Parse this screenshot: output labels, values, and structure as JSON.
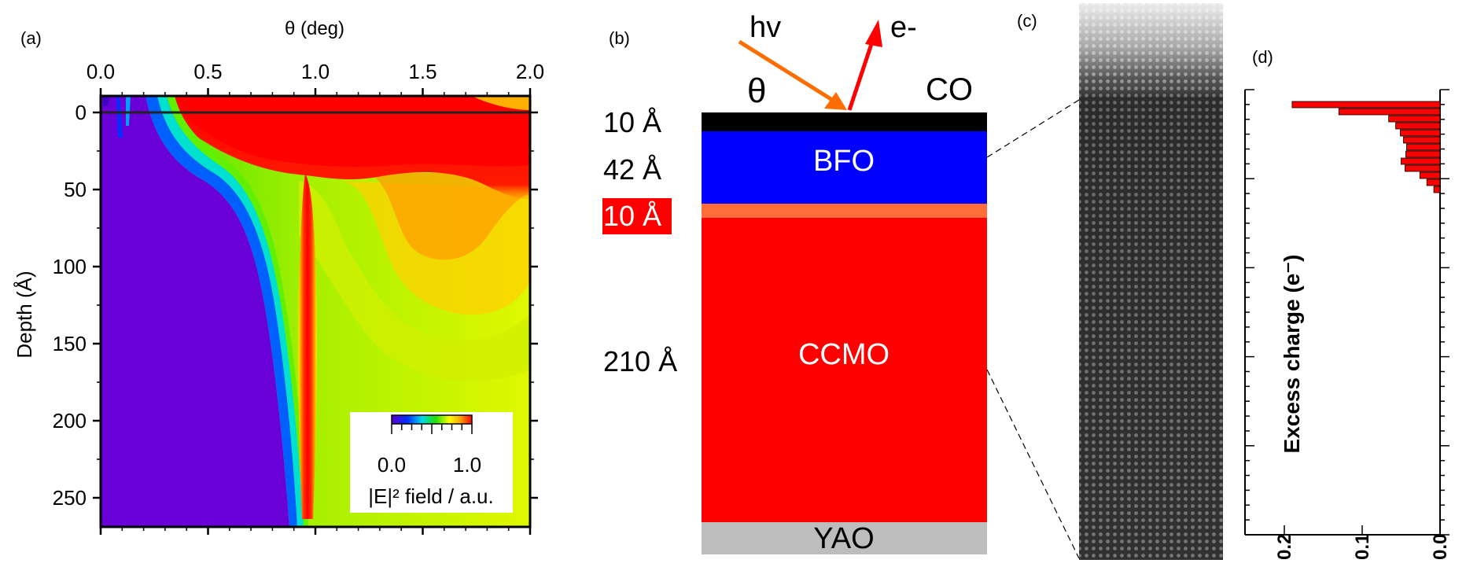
{
  "panel_a": {
    "letter": "(a)",
    "x_label": "θ (deg)",
    "y_label": "Depth (Å)",
    "x_ticks": [
      "0.0",
      "0.5",
      "1.0",
      "1.5",
      "2.0"
    ],
    "y_ticks": [
      "0",
      "50",
      "100",
      "150",
      "200",
      "250"
    ],
    "colorbar": {
      "min_label": "0.0",
      "max_label": "1.0",
      "title": "|E|² field / a.u."
    }
  },
  "panel_b": {
    "letter": "(b)",
    "photon": "hv",
    "electron": "e-",
    "theta": "θ",
    "top_layer": "CO",
    "layers": [
      {
        "thickness": "10 Å",
        "name": "",
        "color": "#000000"
      },
      {
        "thickness": "42 Å",
        "name": "BFO",
        "color": "#0000ff"
      },
      {
        "thickness": "10 Å",
        "name": "",
        "color": "#ff6d3a"
      },
      {
        "thickness": "210 Å",
        "name": "CCMO",
        "color": "#ff0000"
      },
      {
        "thickness": "",
        "name": "YAO",
        "color": "#bdbdbd"
      }
    ]
  },
  "panel_c": {
    "letter": "(c)"
  },
  "panel_d": {
    "letter": "(d)",
    "x_label": "Excess charge (e⁻)",
    "x_ticks": [
      "0.2",
      "0.1",
      "0.0"
    ]
  },
  "chart_data": {
    "type": "bar",
    "orientation": "horizontal",
    "x_axis_label": "Excess charge (e⁻)",
    "x_range": [
      0.0,
      0.2
    ],
    "bar_color": "#ff0000",
    "values": [
      0.19,
      0.13,
      0.066,
      0.057,
      0.051,
      0.047,
      0.043,
      0.044,
      0.05,
      0.045,
      0.026,
      0.017,
      0.008
    ]
  }
}
